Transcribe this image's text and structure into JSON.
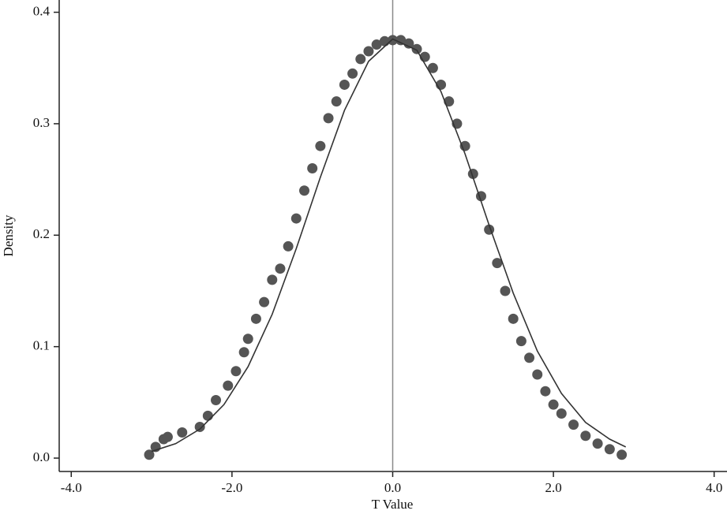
{
  "chart_data": {
    "type": "scatter",
    "x_label": "T Value",
    "y_label": "Density",
    "xlim": [
      -4.15,
      4.16
    ],
    "ylim": [
      -0.012,
      0.411
    ],
    "xticks": [
      {
        "value": -4,
        "label": "-4.0"
      },
      {
        "value": -2,
        "label": "-2.0"
      },
      {
        "value": 0,
        "label": "0.0"
      },
      {
        "value": 2,
        "label": "2.0"
      },
      {
        "value": 4,
        "label": "4.0"
      }
    ],
    "yticks": [
      {
        "value": 0,
        "label": "0.0"
      },
      0.1,
      0.2,
      0.3,
      0.4
    ],
    "reference_line_x": 0,
    "reference_line_color": "#8a8a8a",
    "series": [
      {
        "type": "scatter",
        "color": "#555555",
        "x": [
          -3.03,
          -2.95,
          -2.85,
          -2.8,
          -2.62,
          -2.4,
          -2.3,
          -2.2,
          -2.05,
          -1.95,
          -1.85,
          -1.8,
          -1.7,
          -1.6,
          -1.5,
          -1.4,
          -1.3,
          -1.2,
          -1.1,
          -1.0,
          -0.9,
          -0.8,
          -0.7,
          -0.6,
          -0.5,
          -0.4,
          -0.3,
          -0.2,
          -0.1,
          0,
          0.1,
          0.2,
          0.3,
          0.4,
          0.5,
          0.6,
          0.7,
          0.8,
          0.9,
          1.0,
          1.1,
          1.2,
          1.3,
          1.4,
          1.5,
          1.6,
          1.7,
          1.8,
          1.9,
          2.0,
          2.1,
          2.25,
          2.4,
          2.55,
          2.7,
          2.85
        ],
        "values": [
          0.003,
          0.01,
          0.017,
          0.019,
          0.023,
          0.028,
          0.038,
          0.052,
          0.065,
          0.078,
          0.095,
          0.107,
          0.125,
          0.14,
          0.16,
          0.17,
          0.19,
          0.215,
          0.24,
          0.26,
          0.28,
          0.305,
          0.32,
          0.335,
          0.345,
          0.358,
          0.365,
          0.371,
          0.374,
          0.375,
          0.375,
          0.372,
          0.367,
          0.36,
          0.35,
          0.335,
          0.32,
          0.3,
          0.28,
          0.255,
          0.235,
          0.205,
          0.175,
          0.15,
          0.125,
          0.105,
          0.09,
          0.075,
          0.06,
          0.048,
          0.04,
          0.03,
          0.02,
          0.013,
          0.008,
          0.003
        ]
      },
      {
        "type": "line",
        "color": "#333333",
        "x": [
          -3,
          -2.7,
          -2.4,
          -2.1,
          -1.8,
          -1.5,
          -1.2,
          -0.9,
          -0.6,
          -0.3,
          0,
          0.3,
          0.6,
          0.9,
          1.2,
          1.5,
          1.8,
          2.1,
          2.4,
          2.7,
          2.9
        ],
        "values": [
          0.006,
          0.013,
          0.026,
          0.048,
          0.082,
          0.129,
          0.188,
          0.252,
          0.312,
          0.356,
          0.376,
          0.366,
          0.329,
          0.273,
          0.209,
          0.148,
          0.096,
          0.058,
          0.032,
          0.017,
          0.01
        ]
      }
    ]
  }
}
